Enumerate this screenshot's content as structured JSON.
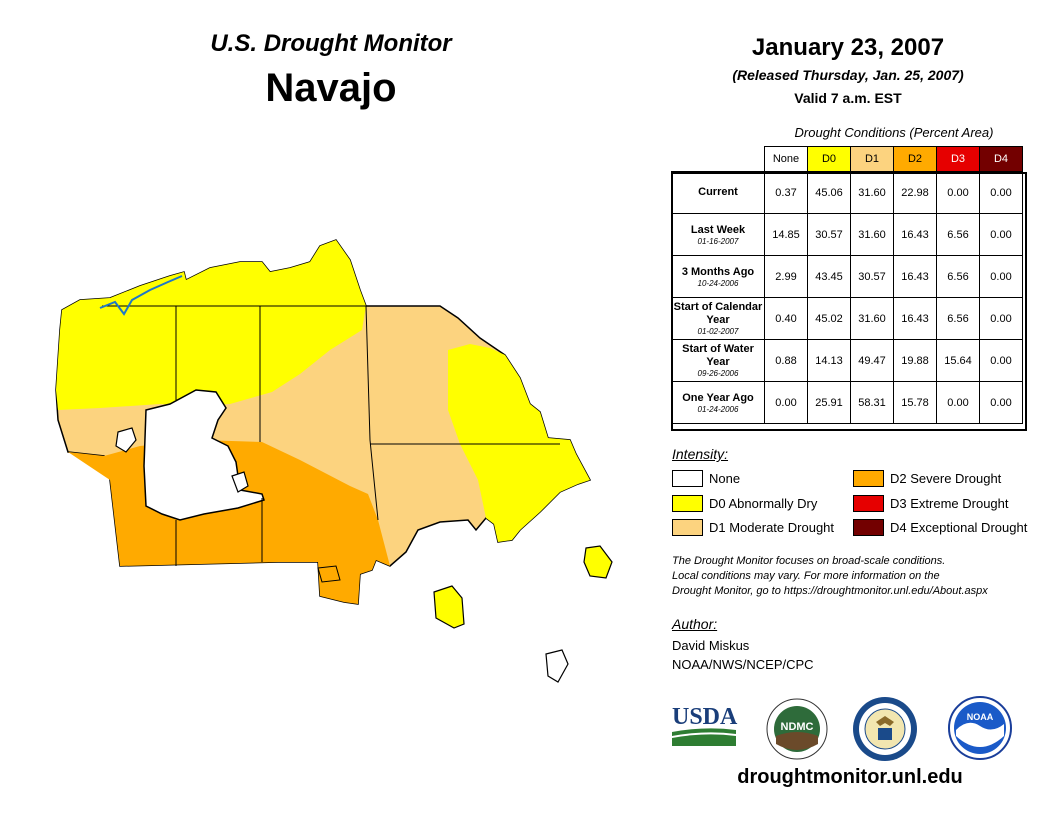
{
  "header": {
    "subtitle": "U.S. Drought Monitor",
    "title": "Navajo",
    "date": "January 23, 2007",
    "released": "(Released Thursday, Jan. 25, 2007)",
    "valid": "Valid 7 a.m. EST"
  },
  "table": {
    "caption": "Drought Conditions (Percent Area)",
    "columns": [
      "None",
      "D0",
      "D1",
      "D2",
      "D3",
      "D4"
    ],
    "rows": [
      {
        "label": "Current",
        "sub": "",
        "values": [
          "0.37",
          "45.06",
          "31.60",
          "22.98",
          "0.00",
          "0.00"
        ]
      },
      {
        "label": "Last Week",
        "sub": "01-16-2007",
        "values": [
          "14.85",
          "30.57",
          "31.60",
          "16.43",
          "6.56",
          "0.00"
        ]
      },
      {
        "label": "3 Months Ago",
        "sub": "10-24-2006",
        "values": [
          "2.99",
          "43.45",
          "30.57",
          "16.43",
          "6.56",
          "0.00"
        ]
      },
      {
        "label": "Start of Calendar Year",
        "sub": "01-02-2007",
        "values": [
          "0.40",
          "45.02",
          "31.60",
          "16.43",
          "6.56",
          "0.00"
        ]
      },
      {
        "label": "Start of Water Year",
        "sub": "09-26-2006",
        "values": [
          "0.88",
          "14.13",
          "49.47",
          "19.88",
          "15.64",
          "0.00"
        ]
      },
      {
        "label": "One Year Ago",
        "sub": "01-24-2006",
        "values": [
          "0.00",
          "25.91",
          "58.31",
          "15.78",
          "0.00",
          "0.00"
        ]
      }
    ]
  },
  "legend": {
    "title": "Intensity:",
    "items": [
      {
        "label": "None",
        "color": "#ffffff"
      },
      {
        "label": "D0 Abnormally Dry",
        "color": "#ffff00"
      },
      {
        "label": "D1 Moderate Drought",
        "color": "#fcd37f"
      },
      {
        "label": "D2 Severe Drought",
        "color": "#ffaa00"
      },
      {
        "label": "D3 Extreme Drought",
        "color": "#e60000"
      },
      {
        "label": "D4 Exceptional Drought",
        "color": "#730000"
      }
    ]
  },
  "note": {
    "line1": "The Drought Monitor focuses on broad-scale conditions.",
    "line2": "Local conditions may vary. For more information on the",
    "line3": "Drought Monitor, go to https://droughtmonitor.unl.edu/About.aspx"
  },
  "author": {
    "title": "Author:",
    "name": "David Miskus",
    "org": "NOAA/NWS/NCEP/CPC"
  },
  "logos": {
    "usda": "USDA",
    "ndmc": "NDMC",
    "noaa": "NOAA"
  },
  "website": "droughtmonitor.unl.edu",
  "colors": {
    "none": "#ffffff",
    "d0": "#ffff00",
    "d1": "#fcd37f",
    "d2": "#ffaa00",
    "d3": "#e60000",
    "d4": "#730000",
    "water": "#1e78c8"
  }
}
